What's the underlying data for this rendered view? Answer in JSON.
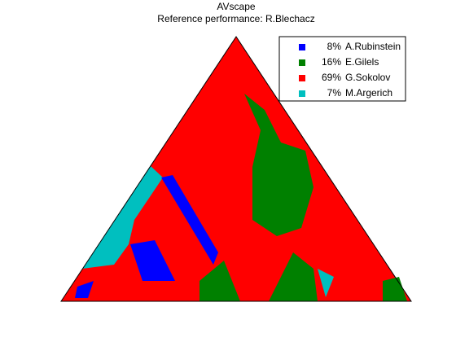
{
  "chart_data": {
    "type": "scape",
    "title": "AVscape",
    "subtitle": "Reference performance: R.Blechacz",
    "series": [
      {
        "name": "A.Rubinstein",
        "color": "#0000ff",
        "values": [
          8
        ],
        "value_labels": [
          "8%"
        ]
      },
      {
        "name": "E.Gilels",
        "color": "#008000",
        "values": [
          16
        ],
        "value_labels": [
          "16%"
        ]
      },
      {
        "name": "G.Sokolov",
        "color": "#ff0000",
        "values": [
          69
        ],
        "value_labels": [
          "69%"
        ]
      },
      {
        "name": "M.Argerich",
        "color": "#00bfbf",
        "values": [
          7
        ],
        "value_labels": [
          "7%"
        ]
      }
    ]
  }
}
